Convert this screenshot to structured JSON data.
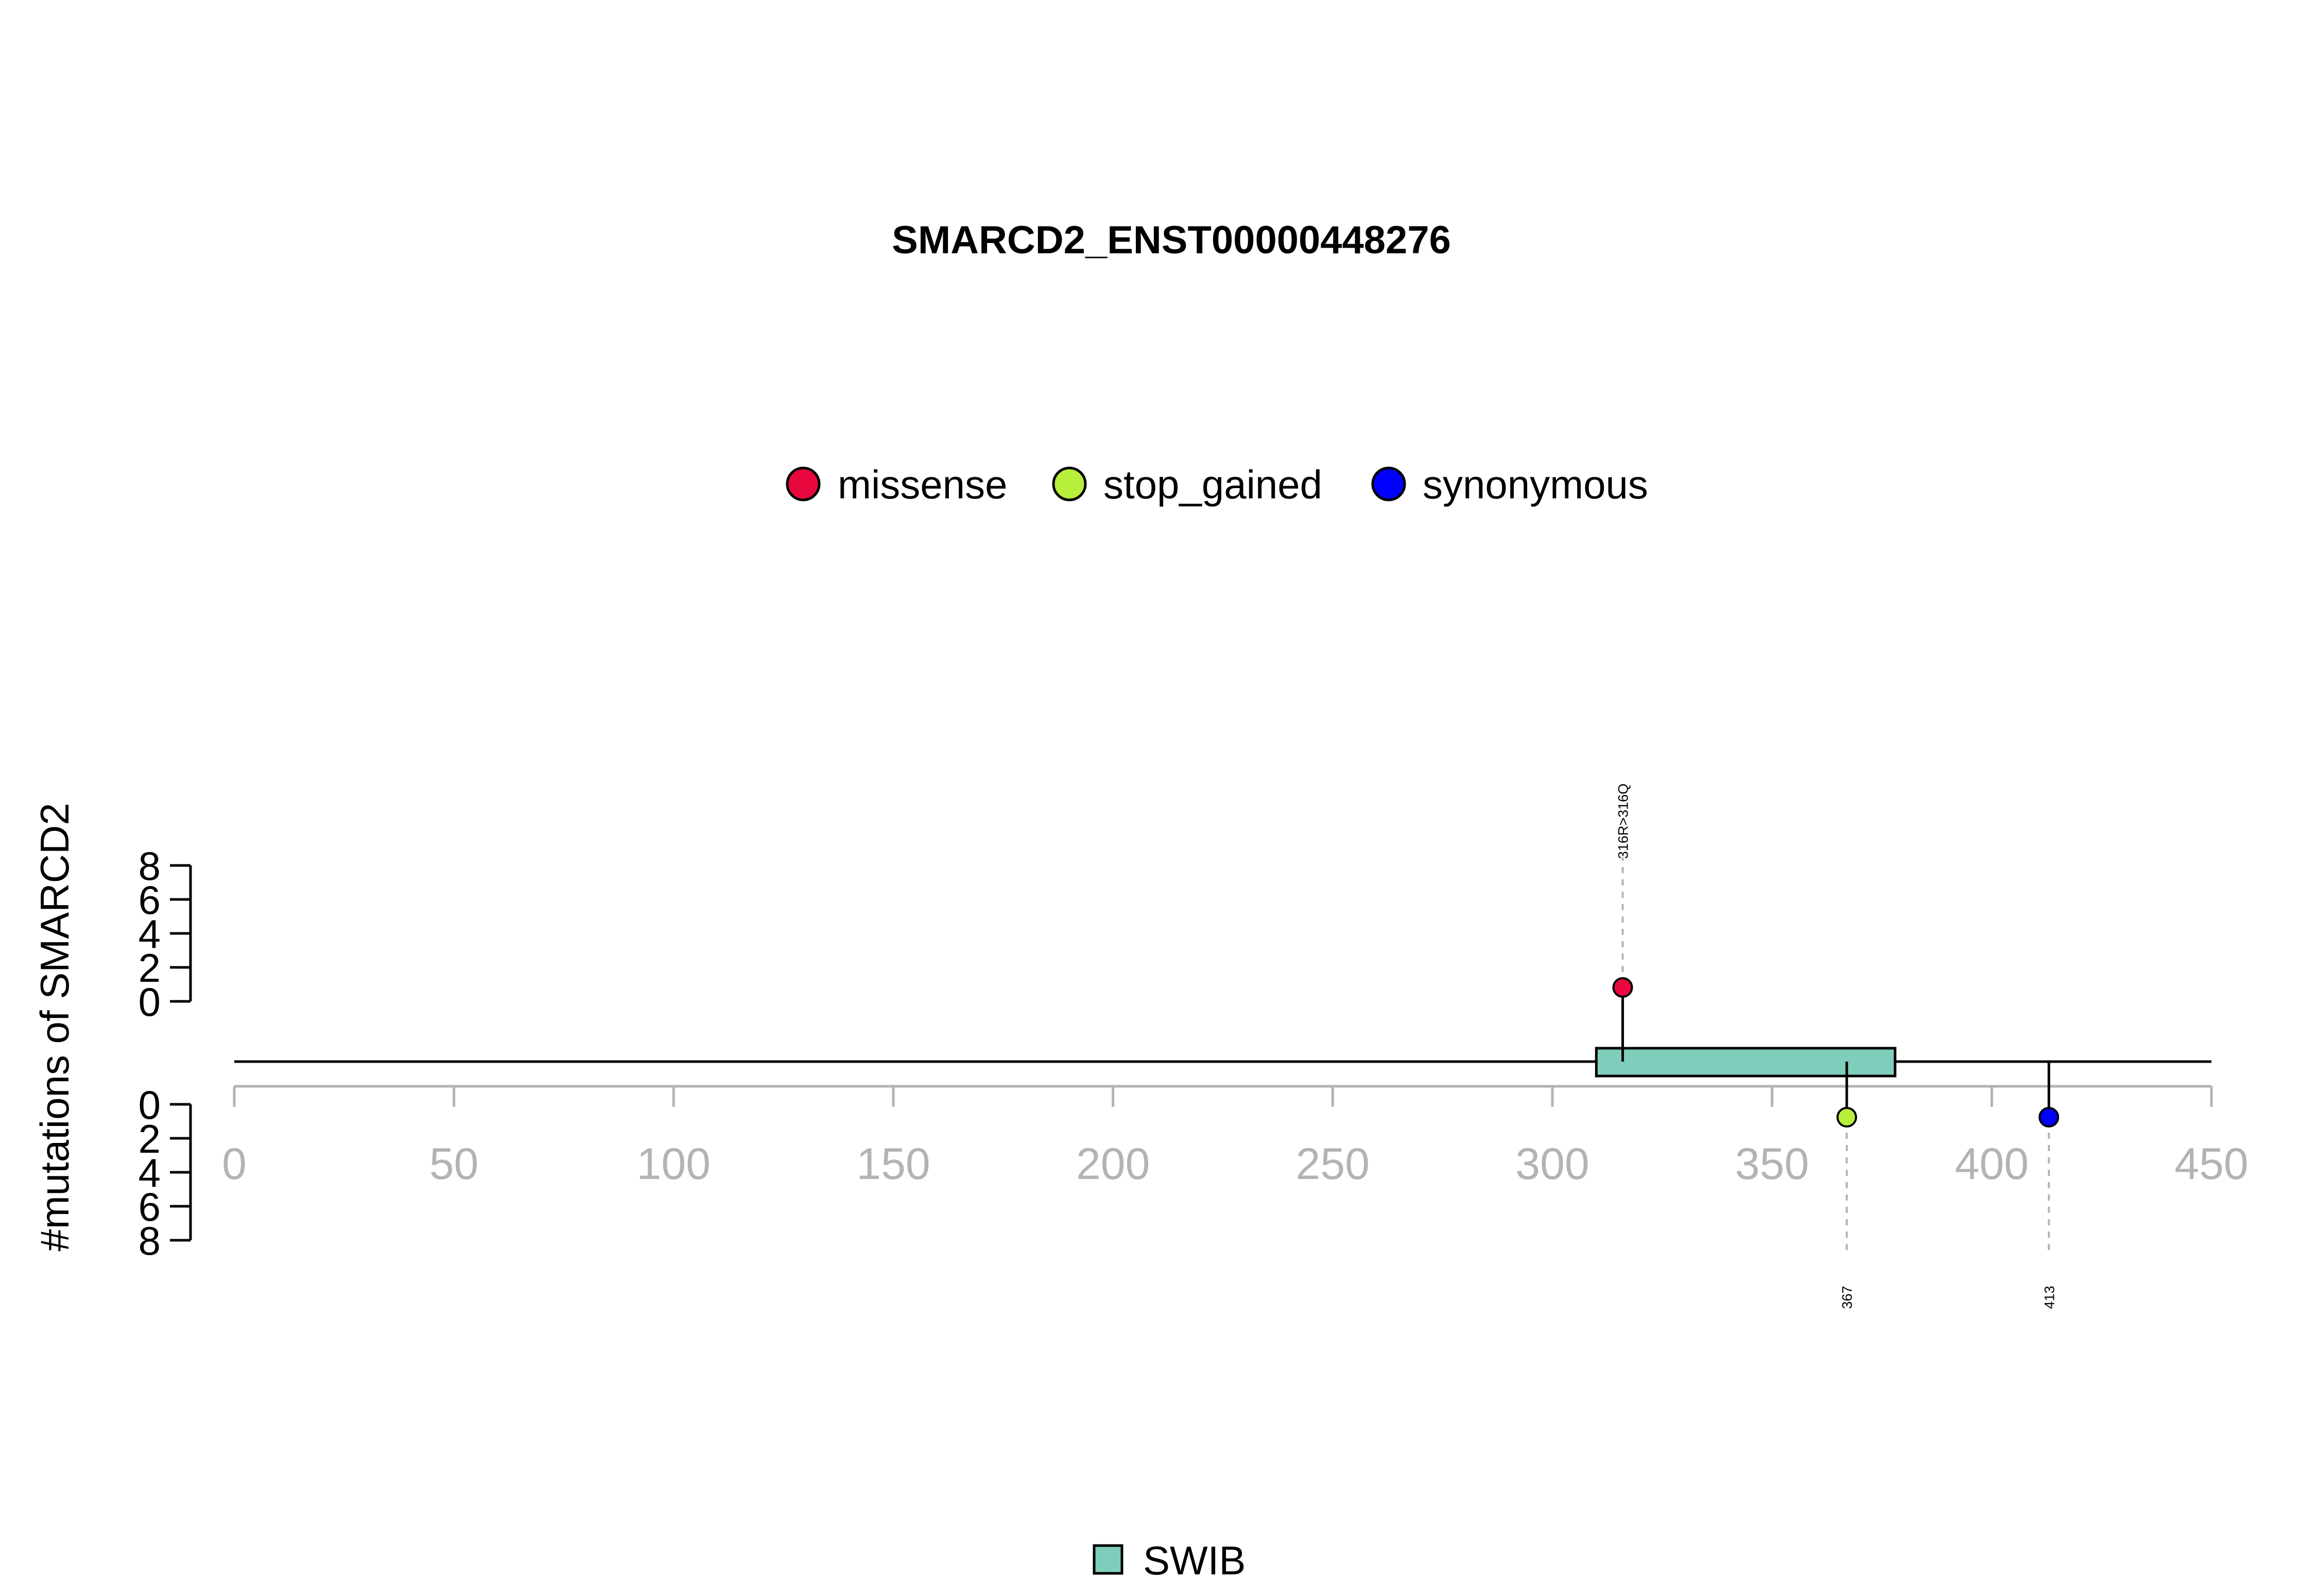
{
  "chart_data": {
    "type": "lollipop",
    "title": "SMARCD2_ENST00000448276",
    "ylabel": "#mutations of SMARCD2",
    "xlim": [
      0,
      450
    ],
    "x_ticks": [
      "0",
      "50",
      "100",
      "150",
      "200",
      "250",
      "300",
      "350",
      "400",
      "450"
    ],
    "y_ticks_top": [
      "0",
      "2",
      "4",
      "6",
      "8"
    ],
    "y_ticks_bottom": [
      "0",
      "2",
      "4",
      "6",
      "8"
    ],
    "legend": {
      "placement": "top-center",
      "entries": [
        {
          "label": "missense",
          "color": "#e8083e"
        },
        {
          "label": "stop_gained",
          "color": "#b7ef3a"
        },
        {
          "label": "synonymous",
          "color": "#0000ff"
        }
      ]
    },
    "domains": [
      {
        "name": "SWIB",
        "start": 310,
        "end": 378,
        "color": "#7fcdbb"
      }
    ],
    "domain_legend": {
      "placement": "bottom-center",
      "entries": [
        {
          "label": "SWIB",
          "color": "#7fcdbb"
        }
      ]
    },
    "mutations": [
      {
        "position": 316,
        "count": 1,
        "type": "missense",
        "side": "top",
        "label": "316R>316Q",
        "color": "#e8083e"
      },
      {
        "position": 367,
        "count": 1,
        "type": "stop_gained",
        "side": "bottom",
        "label": "367",
        "color": "#b7ef3a"
      },
      {
        "position": 413,
        "count": 1,
        "type": "synonymous",
        "side": "bottom",
        "label": "413",
        "color": "#0000ff"
      }
    ]
  }
}
